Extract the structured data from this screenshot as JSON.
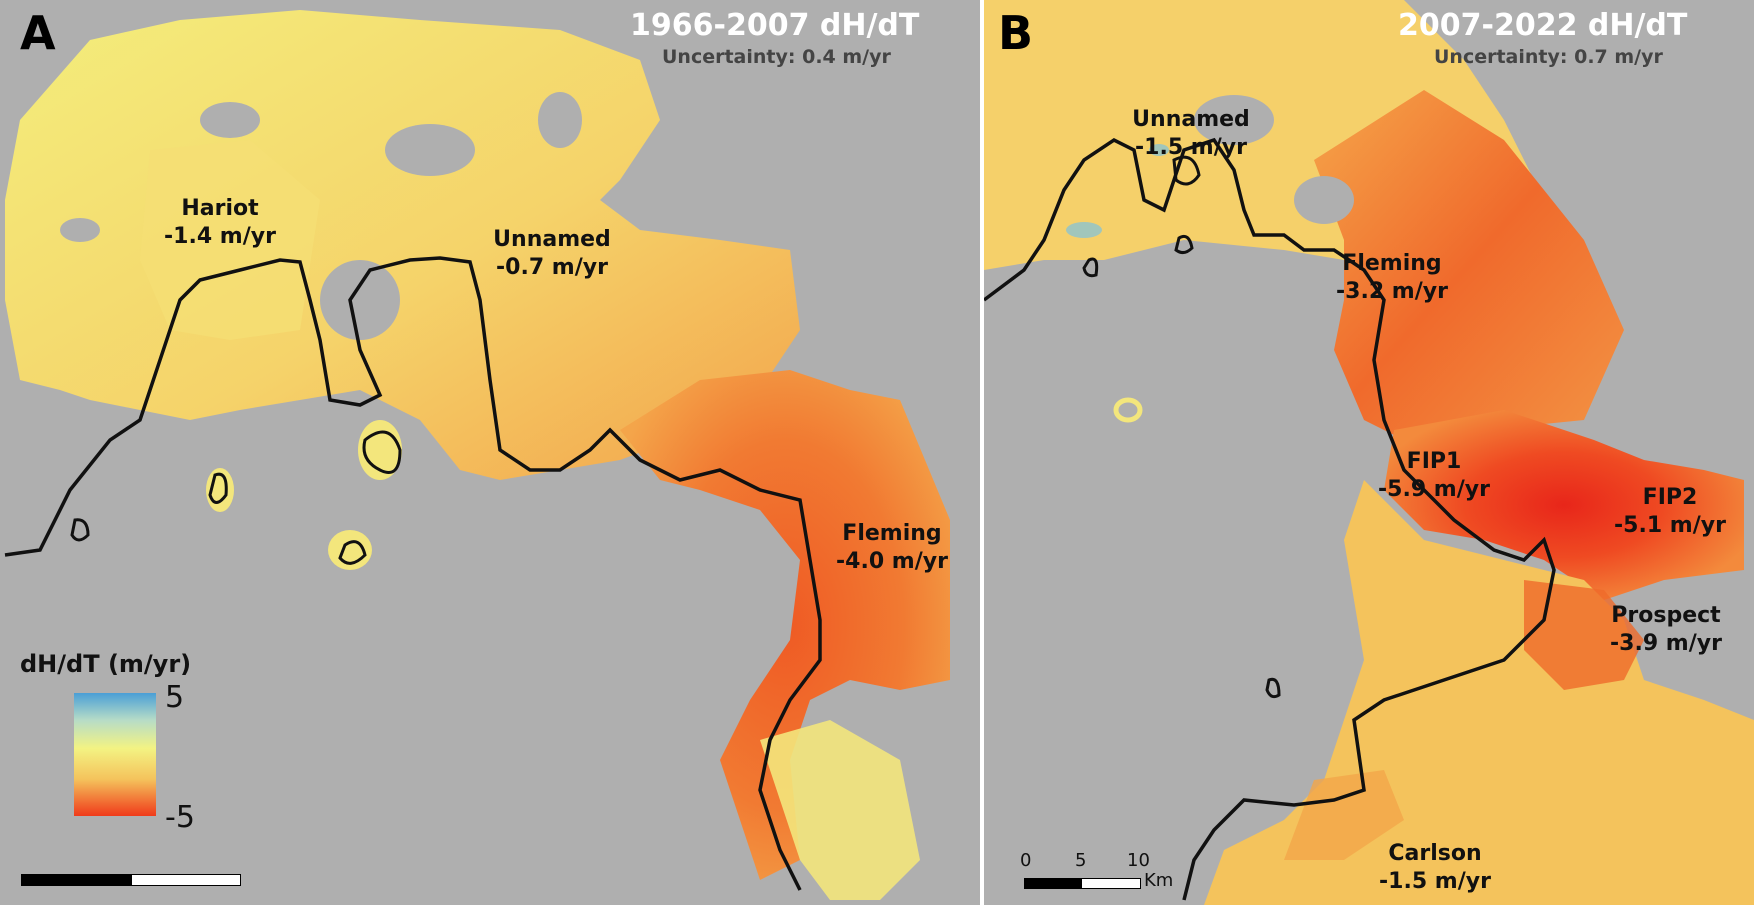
{
  "panel_a": {
    "letter": "A",
    "title": "1966-2007 dH/dT",
    "uncertainty": "Uncertainty: 0.4 m/yr",
    "glaciers": [
      {
        "name": "Hariot",
        "rate": "-1.4 m/yr"
      },
      {
        "name": "Unnamed",
        "rate": "-0.7 m/yr"
      },
      {
        "name": "Fleming",
        "rate": "-4.0 m/yr"
      }
    ],
    "legend": {
      "title": "dH/dT (m/yr)",
      "max": "5",
      "min": "-5"
    }
  },
  "panel_b": {
    "letter": "B",
    "title": "2007-2022 dH/dT",
    "uncertainty": "Uncertainty: 0.7 m/yr",
    "glaciers": [
      {
        "name": "Unnamed",
        "rate": "-1.5 m/yr"
      },
      {
        "name": "Fleming",
        "rate": "-3.2 m/yr"
      },
      {
        "name": "FIP1",
        "rate": "-5.9 m/yr"
      },
      {
        "name": "FIP2",
        "rate": "-5.1 m/yr"
      },
      {
        "name": "Prospect",
        "rate": "-3.9 m/yr"
      },
      {
        "name": "Carlson",
        "rate": "-1.5 m/yr"
      }
    ],
    "scale_bar": {
      "ticks": [
        "0",
        "5",
        "10"
      ],
      "unit": "Km"
    }
  },
  "colors": {
    "background": "#afafaf",
    "stable": "#f3f383",
    "thinning_moderate": "#f4b14c",
    "thinning_strong": "#ee4a20",
    "thickening": "#4a9fd6",
    "coastline": "#111111"
  }
}
